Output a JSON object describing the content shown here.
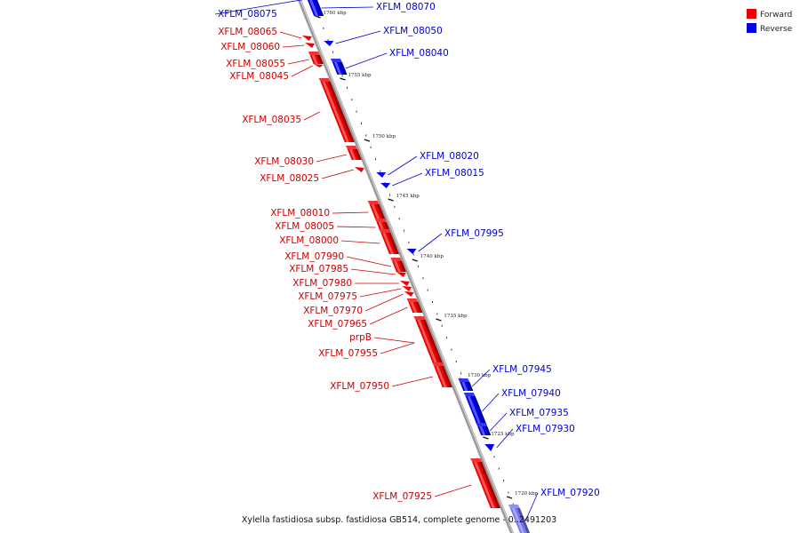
{
  "colors": {
    "forward": "#ee0000",
    "reverse": "#0000ee",
    "backbone": "#9a9a9a",
    "label_line_fwd": "#cc0000",
    "label_line_rev": "#0000cc"
  },
  "legend": {
    "forward_label": "Forward",
    "reverse_label": "Reverse"
  },
  "caption": "Xylella fastidiosa subsp. fastidiosa GB514, complete genome - 0..2491203",
  "scale_ticks": [
    "1760 kbp",
    "1755 kbp",
    "1750 kbp",
    "1745 kbp",
    "1740 kbp",
    "1735 kbp",
    "1730 kbp",
    "1725 kbp",
    "1720 kbp"
  ],
  "genes": {
    "forward": [
      "XFLM_08065",
      "XFLM_08060",
      "XFLM_08055",
      "XFLM_08045",
      "XFLM_08035",
      "XFLM_08030",
      "XFLM_08025",
      "XFLM_08010",
      "XFLM_08005",
      "XFLM_08000",
      "XFLM_07990",
      "XFLM_07985",
      "XFLM_07980",
      "XFLM_07975",
      "XFLM_07970",
      "XFLM_07965",
      "prpB",
      "XFLM_07955",
      "XFLM_07950",
      "XFLM_07925"
    ],
    "reverse": [
      "XFLM_08075",
      "XFLM_08070",
      "XFLM_08050",
      "XFLM_08040",
      "XFLM_08020",
      "XFLM_08015",
      "XFLM_07995",
      "XFLM_07945",
      "XFLM_07940",
      "XFLM_07935",
      "XFLM_07930",
      "XFLM_07920"
    ]
  }
}
